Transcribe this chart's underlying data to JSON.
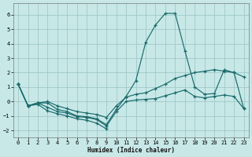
{
  "xlabel": "Humidex (Indice chaleur)",
  "background_color": "#c8e8e8",
  "grid_color": "#a0c8c8",
  "line_color": "#1a6b6b",
  "xlim": [
    -0.5,
    23.5
  ],
  "ylim": [
    -2.5,
    6.8
  ],
  "yticks": [
    -2,
    -1,
    0,
    1,
    2,
    3,
    4,
    5,
    6
  ],
  "xticks": [
    0,
    1,
    2,
    3,
    4,
    5,
    6,
    7,
    8,
    9,
    10,
    11,
    12,
    13,
    14,
    15,
    16,
    17,
    18,
    19,
    20,
    21,
    22,
    23
  ],
  "lines": [
    {
      "x": [
        0,
        1,
        2,
        3,
        4,
        5,
        6,
        7,
        8,
        9,
        10,
        11,
        12,
        13,
        14,
        15,
        16,
        17,
        18,
        19,
        20,
        21,
        22,
        23
      ],
      "y": [
        1.2,
        -0.3,
        -0.1,
        -0.1,
        -0.55,
        -0.7,
        -1.0,
        -1.05,
        -1.2,
        -1.6,
        -0.55,
        0.35,
        1.45,
        4.1,
        5.3,
        6.1,
        6.1,
        3.5,
        1.0,
        0.5,
        0.55,
        2.2,
        2.0,
        1.7
      ]
    },
    {
      "x": [
        0,
        1,
        2,
        3,
        4,
        5,
        6,
        7,
        8,
        9,
        10,
        11,
        12,
        13,
        14,
        15,
        16,
        17,
        18,
        19,
        20,
        21,
        22,
        23
      ],
      "y": [
        1.2,
        -0.3,
        -0.1,
        -0.0,
        -0.3,
        -0.5,
        -0.7,
        -0.8,
        -0.9,
        -1.1,
        -0.3,
        0.3,
        0.5,
        0.6,
        0.9,
        1.2,
        1.6,
        1.8,
        2.0,
        2.1,
        2.2,
        2.1,
        2.0,
        -0.5
      ]
    },
    {
      "x": [
        0,
        1,
        2,
        3,
        4,
        5,
        6,
        7,
        8,
        9,
        10,
        11,
        12,
        13,
        14,
        15,
        16,
        17,
        18,
        19,
        20,
        21,
        22,
        23
      ],
      "y": [
        1.2,
        -0.3,
        -0.1,
        -0.4,
        -0.7,
        -0.8,
        -1.05,
        -1.1,
        -1.25,
        -1.7,
        -0.7,
        0.0,
        0.1,
        0.15,
        0.2,
        0.4,
        0.6,
        0.8,
        0.35,
        0.25,
        0.35,
        0.45,
        0.35,
        -0.5
      ]
    },
    {
      "x": [
        0,
        1,
        2,
        3,
        4,
        5,
        6,
        7,
        8,
        9
      ],
      "y": [
        1.2,
        -0.3,
        -0.2,
        -0.65,
        -0.85,
        -1.0,
        -1.2,
        -1.3,
        -1.5,
        -1.9
      ]
    }
  ]
}
